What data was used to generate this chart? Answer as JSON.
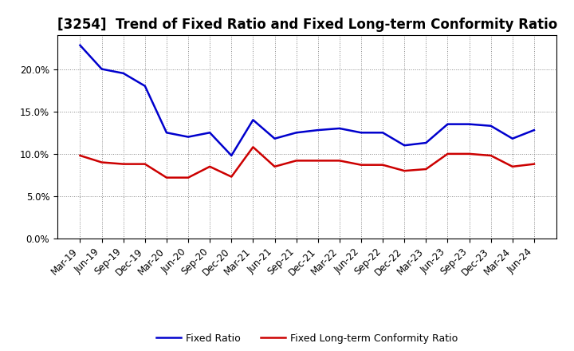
{
  "title": "[3254]  Trend of Fixed Ratio and Fixed Long-term Conformity Ratio",
  "x_labels": [
    "Mar-19",
    "Jun-19",
    "Sep-19",
    "Dec-19",
    "Mar-20",
    "Jun-20",
    "Sep-20",
    "Dec-20",
    "Mar-21",
    "Jun-21",
    "Sep-21",
    "Dec-21",
    "Mar-22",
    "Jun-22",
    "Sep-22",
    "Dec-22",
    "Mar-23",
    "Jun-23",
    "Sep-23",
    "Dec-23",
    "Mar-24",
    "Jun-24"
  ],
  "fixed_ratio": [
    22.8,
    20.0,
    19.5,
    18.0,
    12.5,
    12.0,
    12.5,
    9.8,
    14.0,
    11.8,
    12.5,
    12.8,
    13.0,
    12.5,
    12.5,
    11.0,
    11.3,
    13.5,
    13.5,
    13.3,
    11.8,
    12.8
  ],
  "fixed_lt_ratio": [
    9.8,
    9.0,
    8.8,
    8.8,
    7.2,
    7.2,
    8.5,
    7.3,
    10.8,
    8.5,
    9.2,
    9.2,
    9.2,
    8.7,
    8.7,
    8.0,
    8.2,
    10.0,
    10.0,
    9.8,
    8.5,
    8.8
  ],
  "fixed_ratio_color": "#0000CD",
  "fixed_lt_ratio_color": "#CC0000",
  "ylim": [
    0,
    24
  ],
  "yticks": [
    0,
    5,
    10,
    15,
    20
  ],
  "bg_color": "#FFFFFF",
  "plot_bg_color": "#FFFFFF",
  "grid_color": "#888888",
  "legend_fixed_ratio": "Fixed Ratio",
  "legend_fixed_lt_ratio": "Fixed Long-term Conformity Ratio",
  "title_fontsize": 12,
  "tick_fontsize": 8.5,
  "linewidth": 1.8
}
